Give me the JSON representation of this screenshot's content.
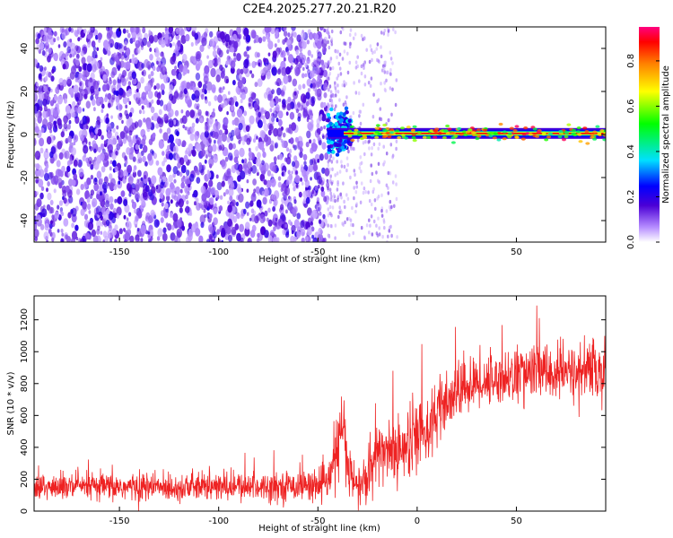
{
  "title": "C2E4.2025.277.20.21.R20",
  "colors": {
    "snr_line": "#ee2222",
    "spec_low": "#8a2be2",
    "frame": "#000000"
  },
  "chart_data": [
    {
      "type": "heatmap",
      "name": "spectrogram",
      "xlabel": "Height of straight line (km)",
      "ylabel": "Frequency (Hz)",
      "xlim": [
        -193,
        95
      ],
      "ylim": [
        -50,
        50
      ],
      "xticks": [
        -150,
        -100,
        -50,
        0,
        50
      ],
      "xtick_labels": [
        "-150",
        "-100",
        "-50",
        "0",
        "50"
      ],
      "yticks": [
        -40,
        -20,
        0,
        20,
        40
      ],
      "ytick_labels": [
        "-40",
        "-20",
        "0",
        "20",
        "40"
      ],
      "noise_region_km": [
        -193,
        -45
      ],
      "scattered_region_km": [
        -45,
        -10
      ],
      "signal_track": {
        "x_start": -45,
        "x_end": 95,
        "frequency_hz": 0.5,
        "peak_amplitude": 0.95
      },
      "colorbar": {
        "label": "Normalized spectral amplitude",
        "range": [
          0,
          0.95
        ],
        "ticks": [
          0.0,
          0.2,
          0.4,
          0.6,
          0.8
        ],
        "tick_labels": [
          "0.0",
          "0.2",
          "0.4",
          "0.6",
          "0.8"
        ]
      }
    },
    {
      "type": "line",
      "name": "snr",
      "xlabel": "Height of straight line (km)",
      "ylabel": "SNR (10 * v/v)",
      "xlim": [
        -193,
        95
      ],
      "ylim": [
        0,
        1350
      ],
      "xticks": [
        -150,
        -100,
        -50,
        0,
        50
      ],
      "xtick_labels": [
        "-150",
        "-100",
        "-50",
        "0",
        "50"
      ],
      "yticks": [
        0,
        200,
        400,
        600,
        800,
        1000,
        1200
      ],
      "ytick_labels": [
        "0",
        "200",
        "400",
        "600",
        "800",
        "1000",
        "1200"
      ],
      "series": [
        {
          "name": "SNR",
          "x": [
            -193,
            -180,
            -160,
            -140,
            -120,
            -100,
            -80,
            -60,
            -45,
            -40,
            -37,
            -35,
            -30,
            -25,
            -20,
            -15,
            -10,
            -5,
            0,
            5,
            10,
            15,
            20,
            30,
            40,
            50,
            60,
            70,
            80,
            90,
            95
          ],
          "y": [
            150,
            150,
            150,
            150,
            150,
            150,
            155,
            160,
            170,
            400,
            550,
            250,
            150,
            200,
            350,
            400,
            380,
            420,
            500,
            520,
            600,
            650,
            750,
            800,
            830,
            850,
            880,
            860,
            870,
            880,
            870
          ],
          "spread": [
            100,
            100,
            100,
            100,
            100,
            100,
            100,
            100,
            110,
            250,
            300,
            200,
            150,
            200,
            250,
            250,
            250,
            250,
            250,
            250,
            230,
            220,
            200,
            180,
            180,
            200,
            220,
            200,
            200,
            200,
            180
          ]
        }
      ]
    }
  ]
}
